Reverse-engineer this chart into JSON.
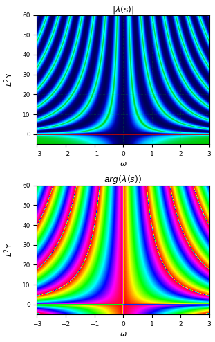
{
  "title_top": "|\\lambda(s)|",
  "title_bottom": "arg(\\lambda(s))",
  "xlabel": "\\omega",
  "ylabel": "L^2 \\Upsilon",
  "omega_min": -3.0,
  "omega_max": 3.0,
  "L_min": -5.0,
  "L_max": 60.0,
  "yticks": [
    0,
    10,
    20,
    30,
    40,
    50,
    60
  ],
  "xticks": [
    -3,
    -2,
    -1,
    0,
    1,
    2,
    3
  ],
  "hline_color_top": "#cc0000",
  "hline_color_bottom": "#444444",
  "figsize": [
    3.11,
    4.94
  ],
  "dpi": 100
}
